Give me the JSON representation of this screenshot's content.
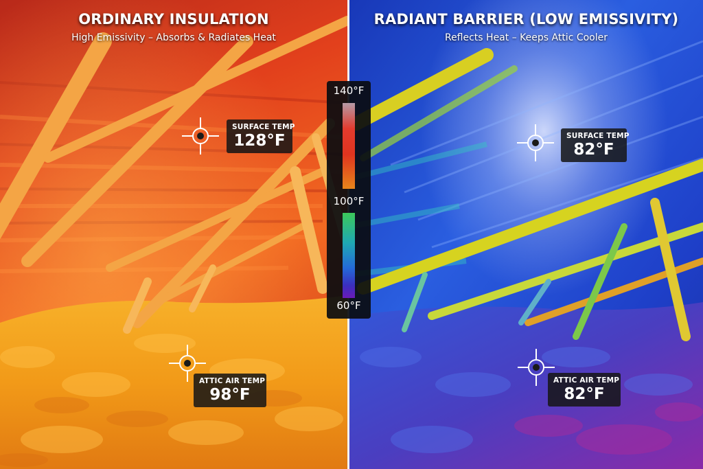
{
  "left_panel": {
    "title": "ORDINARY INSULATION",
    "subtitle": "High Emissivity – Absorbs & Radiates Heat",
    "surface": {
      "label": "SURFACE TEMP",
      "value": "128°F"
    },
    "air": {
      "label": "ATTIC AIR TEMP",
      "value": "98°F"
    }
  },
  "right_panel": {
    "title": "RADIANT BARRIER (LOW EMISSIVITY)",
    "subtitle": "Reflects Heat – Keeps Attic Cooler",
    "surface": {
      "label": "SURFACE TEMP",
      "value": "82°F"
    },
    "air": {
      "label": "ATTIC AIR TEMP",
      "value": "82°F"
    }
  },
  "temperature_scale": {
    "top_label": "140°F",
    "middle_label": "100°F",
    "bottom_label": "60°F"
  },
  "colors": {
    "warm_roof": "#e0461c",
    "warm_floor": "#f29a1a",
    "cool_roof": "#1f3fd0",
    "cool_floor": "#3b2fa8",
    "rafter_warm": "#f2a040",
    "rafter_cool": "#d8d21e"
  },
  "icons": [
    "crosshair-icon"
  ]
}
